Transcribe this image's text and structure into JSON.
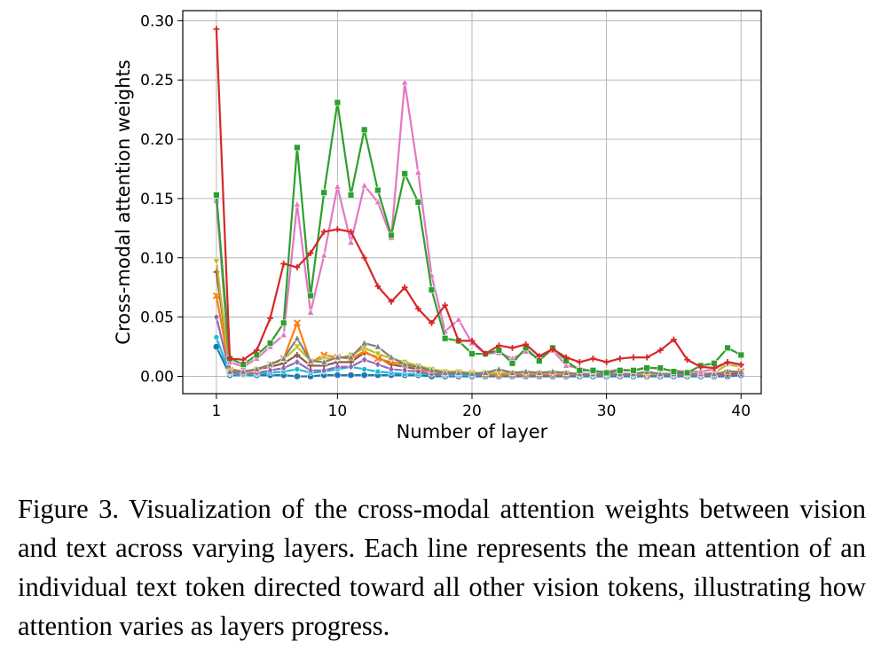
{
  "chart_data": {
    "type": "line",
    "title": "",
    "xlabel": "Number of layer",
    "ylabel": "Cross-modal attention weights",
    "xlim": [
      -1.5,
      41.5
    ],
    "ylim": [
      -0.0146,
      0.3085
    ],
    "xticks": [
      1,
      10,
      20,
      30,
      40
    ],
    "yticks": [
      0.0,
      0.05,
      0.1,
      0.15,
      0.2,
      0.25,
      0.3
    ],
    "ytick_labels": [
      "0.00",
      "0.05",
      "0.10",
      "0.15",
      "0.20",
      "0.25",
      "0.30"
    ],
    "grid": true,
    "legend": "none",
    "x": [
      1,
      2,
      3,
      4,
      5,
      6,
      7,
      8,
      9,
      10,
      11,
      12,
      13,
      14,
      15,
      16,
      17,
      18,
      19,
      20,
      21,
      22,
      23,
      24,
      25,
      26,
      27,
      28,
      29,
      30,
      31,
      32,
      33,
      34,
      35,
      36,
      37,
      38,
      39,
      40
    ],
    "series": [
      {
        "color": "#d62728",
        "marker": "plus",
        "values": [
          0.293,
          0.015,
          0.014,
          0.022,
          0.049,
          0.095,
          0.092,
          0.104,
          0.122,
          0.124,
          0.122,
          0.1,
          0.076,
          0.063,
          0.075,
          0.057,
          0.045,
          0.06,
          0.03,
          0.03,
          0.019,
          0.026,
          0.024,
          0.027,
          0.017,
          0.023,
          0.016,
          0.012,
          0.015,
          0.012,
          0.015,
          0.016,
          0.016,
          0.022,
          0.031,
          0.014,
          0.008,
          0.007,
          0.012,
          0.01
        ]
      },
      {
        "color": "#2ca02c",
        "marker": "square",
        "values": [
          0.153,
          0.015,
          0.01,
          0.018,
          0.028,
          0.045,
          0.193,
          0.068,
          0.155,
          0.231,
          0.153,
          0.208,
          0.157,
          0.119,
          0.171,
          0.147,
          0.073,
          0.032,
          0.03,
          0.019,
          0.019,
          0.022,
          0.011,
          0.024,
          0.013,
          0.024,
          0.013,
          0.005,
          0.005,
          0.003,
          0.005,
          0.005,
          0.007,
          0.007,
          0.004,
          0.003,
          0.009,
          0.011,
          0.024,
          0.018
        ]
      },
      {
        "color": "#e377c2",
        "marker": "triangle",
        "values": [
          0.148,
          0.012,
          0.008,
          0.015,
          0.025,
          0.035,
          0.145,
          0.054,
          0.102,
          0.16,
          0.113,
          0.161,
          0.147,
          0.117,
          0.248,
          0.172,
          0.085,
          0.038,
          0.048,
          0.028,
          0.019,
          0.02,
          0.015,
          0.021,
          0.015,
          0.022,
          0.009,
          0.007,
          0.004,
          0.004,
          0.006,
          0.005,
          0.008,
          0.006,
          0.005,
          0.004,
          0.004,
          0.006,
          0.012,
          0.01
        ]
      },
      {
        "color": "#7f7f7f",
        "marker": "triangle",
        "values": [
          0.15,
          0.004,
          0.004,
          0.006,
          0.01,
          0.015,
          0.032,
          0.013,
          0.012,
          0.016,
          0.016,
          0.028,
          0.025,
          0.016,
          0.01,
          0.008,
          0.005,
          0.003,
          0.003,
          0.002,
          0.003,
          0.006,
          0.003,
          0.004,
          0.003,
          0.004,
          0.003,
          0.002,
          0.002,
          0.002,
          0.002,
          0.002,
          0.004,
          0.002,
          0.002,
          0.002,
          0.002,
          0.002,
          0.004,
          0.004
        ]
      },
      {
        "color": "#bcbd22",
        "marker": "triangle-down",
        "values": [
          0.097,
          0.004,
          0.004,
          0.006,
          0.01,
          0.014,
          0.025,
          0.013,
          0.015,
          0.015,
          0.018,
          0.024,
          0.019,
          0.015,
          0.012,
          0.009,
          0.006,
          0.004,
          0.004,
          0.003,
          0.003,
          0.003,
          0.003,
          0.003,
          0.003,
          0.003,
          0.003,
          0.002,
          0.002,
          0.002,
          0.002,
          0.002,
          0.002,
          0.002,
          0.002,
          0.002,
          0.002,
          0.003,
          0.01,
          0.008
        ]
      },
      {
        "color": "#ff7f0e",
        "marker": "x",
        "values": [
          0.068,
          0.005,
          0.004,
          0.005,
          0.01,
          0.015,
          0.045,
          0.012,
          0.018,
          0.016,
          0.015,
          0.021,
          0.015,
          0.012,
          0.01,
          0.007,
          0.004,
          0.003,
          0.003,
          0.003,
          0.002,
          0.002,
          0.002,
          0.002,
          0.002,
          0.002,
          0.002,
          0.002,
          0.002,
          0.002,
          0.002,
          0.002,
          0.002,
          0.002,
          0.002,
          0.002,
          0.002,
          0.002,
          0.003,
          0.004
        ]
      },
      {
        "color": "#8c564b",
        "marker": "plus",
        "values": [
          0.088,
          0.006,
          0.004,
          0.006,
          0.008,
          0.011,
          0.018,
          0.009,
          0.009,
          0.012,
          0.012,
          0.02,
          0.016,
          0.01,
          0.008,
          0.006,
          0.004,
          0.003,
          0.003,
          0.003,
          0.002,
          0.002,
          0.002,
          0.002,
          0.002,
          0.002,
          0.002,
          0.002,
          0.002,
          0.002,
          0.002,
          0.002,
          0.002,
          0.002,
          0.002,
          0.002,
          0.002,
          0.002,
          0.002,
          0.003
        ]
      },
      {
        "color": "#9467bd",
        "marker": "diamond",
        "values": [
          0.05,
          0.003,
          0.002,
          0.003,
          0.005,
          0.007,
          0.012,
          0.005,
          0.005,
          0.008,
          0.008,
          0.014,
          0.01,
          0.006,
          0.005,
          0.004,
          0.002,
          0.002,
          0.002,
          0.002,
          0.001,
          0.001,
          0.001,
          0.001,
          0.001,
          0.001,
          0.001,
          0.001,
          0.001,
          0.001,
          0.001,
          0.001,
          0.001,
          0.001,
          0.001,
          0.001,
          0.001,
          0.001,
          0.001,
          0.002
        ]
      },
      {
        "color": "#17becf",
        "marker": "star",
        "values": [
          0.033,
          0.002,
          0.001,
          0.002,
          0.003,
          0.004,
          0.006,
          0.003,
          0.004,
          0.006,
          0.008,
          0.006,
          0.004,
          0.003,
          0.002,
          0.002,
          0.002,
          0.001,
          0.001,
          0.001,
          0.001,
          0.001,
          0.001,
          0.001,
          0.001,
          0.001,
          0.001,
          0.001,
          0.001,
          0.001,
          0.001,
          0.001,
          0.001,
          0.001,
          0.001,
          0.001,
          0.001,
          0.001,
          0.003,
          0.004
        ]
      },
      {
        "color": "#1f77b4",
        "marker": "circle",
        "values": [
          0.025,
          0.001,
          0.001,
          0.001,
          0.001,
          0.001,
          0.0,
          0.0,
          0.001,
          0.001,
          0.001,
          0.001,
          0.001,
          0.001,
          0.001,
          0.001,
          0.0,
          0.0,
          0.0,
          0.0,
          0.0,
          0.0,
          0.0,
          0.0,
          0.0,
          0.0,
          0.0,
          0.0,
          0.0,
          0.0,
          0.0,
          0.0,
          0.0,
          0.0,
          0.0,
          0.0,
          0.0,
          0.0,
          0.0,
          0.001
        ]
      }
    ]
  },
  "caption": "Figure 3.  Visualization of the cross-modal attention weights between vision and text across varying layers. Each line represents the mean attention of an individual text token directed toward all other vision tokens, illustrating how attention varies as layers progress."
}
